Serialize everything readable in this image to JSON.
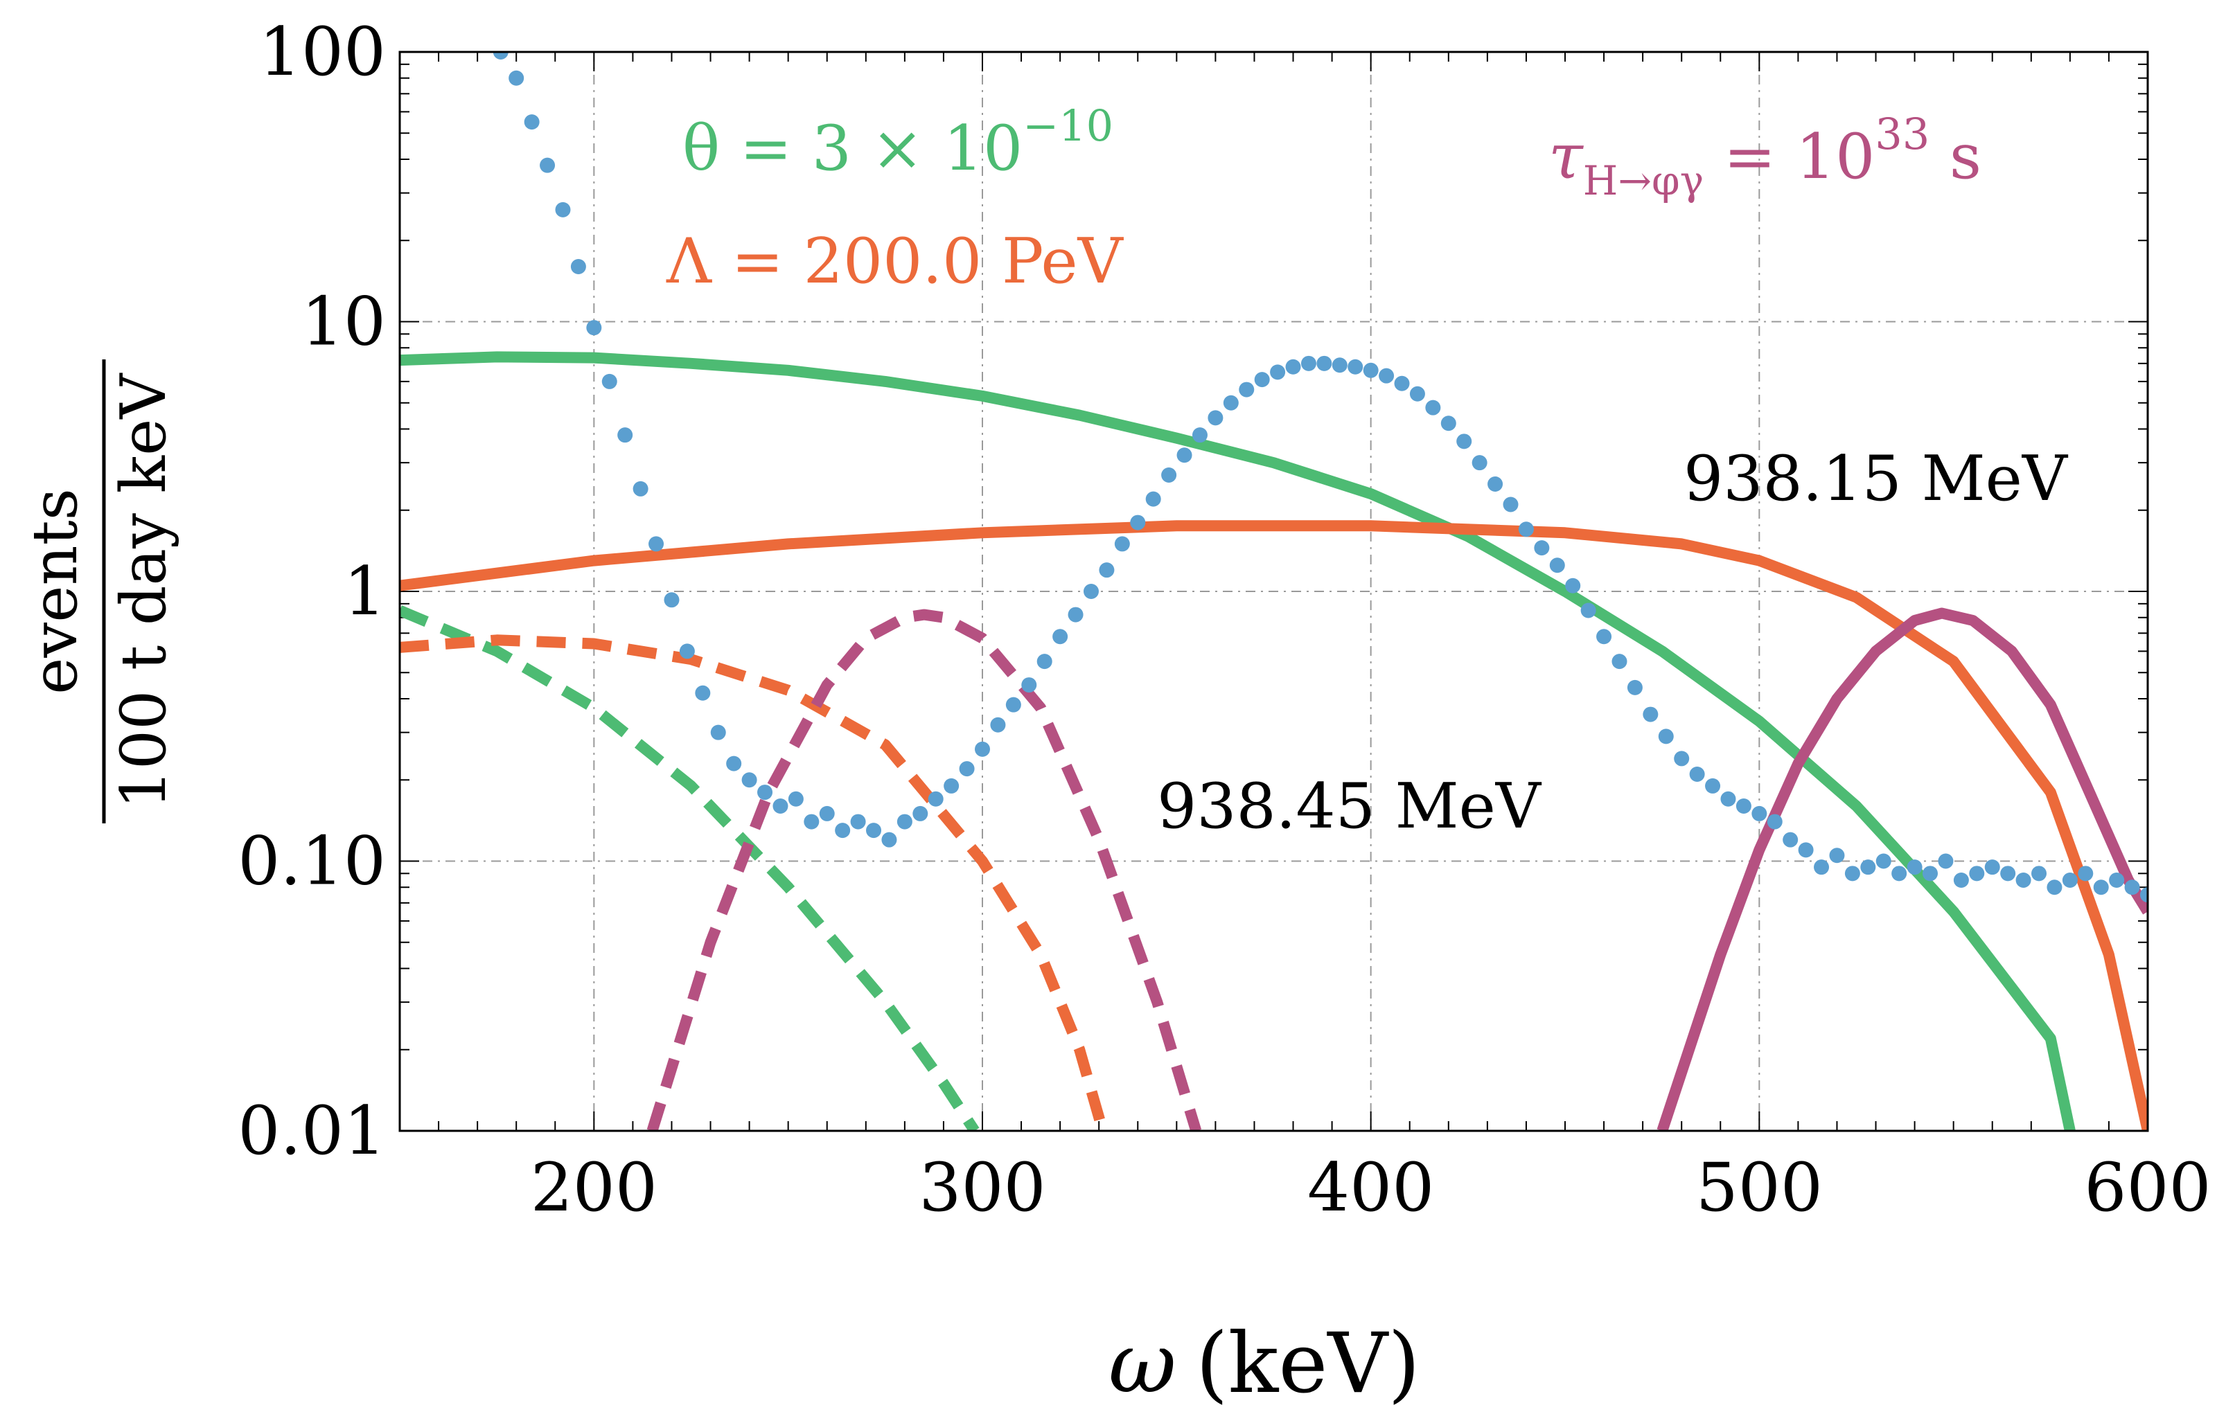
{
  "chart_data": {
    "type": "line",
    "xlabel_var": "ω",
    "xlabel_unit": "(keV)",
    "ylabel_num": "events",
    "ylabel_den": "100 t day keV",
    "xlim": [
      150,
      600
    ],
    "ylim": [
      0.01,
      100
    ],
    "yscale": "log",
    "grid": true,
    "x_ticks": [
      200,
      300,
      400,
      500,
      600
    ],
    "y_ticks": [
      {
        "value": 0.01,
        "label": "0.01"
      },
      {
        "value": 0.1,
        "label": "0.10"
      },
      {
        "value": 1,
        "label": "1"
      },
      {
        "value": 10,
        "label": "10"
      },
      {
        "value": 100,
        "label": "100"
      }
    ],
    "colors": {
      "green": "#4dbb73",
      "orange": "#ec6a3a",
      "magenta": "#b55181",
      "blue": "#5b9fd0"
    },
    "annotations": {
      "theta": {
        "lhs": "θ = 3 × 10",
        "exp": "−10"
      },
      "lambda": {
        "text": "Λ = 200.0 PeV"
      },
      "tau": {
        "sym": "τ",
        "sub": "H→φγ",
        "mid": " = 10",
        "exp": "33",
        "unit": " s"
      },
      "mass_high": "938.15 MeV",
      "mass_low": "938.45 MeV"
    },
    "series": [
      {
        "name": "green-solid",
        "color": "green",
        "style": "solid",
        "x": [
          150,
          175,
          200,
          225,
          250,
          275,
          300,
          325,
          350,
          375,
          400,
          425,
          450,
          475,
          500,
          525,
          550,
          575,
          580
        ],
        "y": [
          7.2,
          7.4,
          7.35,
          7.0,
          6.6,
          6.0,
          5.3,
          4.5,
          3.7,
          3.0,
          2.3,
          1.6,
          1.0,
          0.6,
          0.33,
          0.16,
          0.065,
          0.022,
          0.01
        ]
      },
      {
        "name": "orange-solid",
        "color": "orange",
        "style": "solid",
        "x": [
          150,
          200,
          250,
          300,
          350,
          400,
          450,
          480,
          500,
          525,
          550,
          575,
          590,
          600
        ],
        "y": [
          1.05,
          1.3,
          1.5,
          1.65,
          1.75,
          1.75,
          1.65,
          1.5,
          1.3,
          0.95,
          0.55,
          0.18,
          0.045,
          0.01
        ]
      },
      {
        "name": "magenta-solid",
        "color": "magenta",
        "style": "solid",
        "x": [
          475,
          490,
          500,
          510,
          520,
          530,
          540,
          547,
          555,
          565,
          575,
          585,
          595,
          600
        ],
        "y": [
          0.01,
          0.045,
          0.11,
          0.23,
          0.4,
          0.6,
          0.78,
          0.83,
          0.78,
          0.6,
          0.38,
          0.18,
          0.085,
          0.065
        ]
      },
      {
        "name": "green-dashed",
        "color": "green",
        "style": "dashed",
        "x": [
          150,
          175,
          200,
          225,
          250,
          275,
          290,
          298
        ],
        "y": [
          0.85,
          0.6,
          0.37,
          0.19,
          0.08,
          0.03,
          0.015,
          0.01
        ]
      },
      {
        "name": "orange-dashed",
        "color": "orange",
        "style": "dashed",
        "x": [
          150,
          175,
          200,
          225,
          250,
          275,
          300,
          315,
          325,
          331
        ],
        "y": [
          0.62,
          0.66,
          0.64,
          0.56,
          0.43,
          0.27,
          0.1,
          0.045,
          0.02,
          0.01
        ]
      },
      {
        "name": "magenta-dashed",
        "color": "magenta",
        "style": "dashed",
        "x": [
          215,
          230,
          245,
          260,
          270,
          280,
          285,
          290,
          300,
          315,
          330,
          345,
          355
        ],
        "y": [
          0.01,
          0.05,
          0.18,
          0.45,
          0.67,
          0.8,
          0.82,
          0.8,
          0.67,
          0.37,
          0.12,
          0.03,
          0.01
        ]
      },
      {
        "name": "background-dots",
        "color": "blue",
        "style": "dots",
        "x": [
          176,
          180,
          184,
          188,
          192,
          196,
          200,
          204,
          208,
          212,
          216,
          220,
          224,
          228,
          232,
          236,
          240,
          244,
          248,
          252,
          256,
          260,
          264,
          268,
          272,
          276,
          280,
          284,
          288,
          292,
          296,
          300,
          304,
          308,
          312,
          316,
          320,
          324,
          328,
          332,
          336,
          340,
          344,
          348,
          352,
          356,
          360,
          364,
          368,
          372,
          376,
          380,
          384,
          388,
          392,
          396,
          400,
          404,
          408,
          412,
          416,
          420,
          424,
          428,
          432,
          436,
          440,
          444,
          448,
          452,
          456,
          460,
          464,
          468,
          472,
          476,
          480,
          484,
          488,
          492,
          496,
          500,
          504,
          508,
          512,
          516,
          520,
          524,
          528,
          532,
          536,
          540,
          544,
          548,
          552,
          556,
          560,
          564,
          568,
          572,
          576,
          580,
          584,
          588,
          592,
          596,
          600
        ],
        "y": [
          100,
          80,
          55,
          38,
          26,
          16,
          9.5,
          6.0,
          3.8,
          2.4,
          1.5,
          0.93,
          0.6,
          0.42,
          0.3,
          0.23,
          0.2,
          0.18,
          0.16,
          0.17,
          0.14,
          0.15,
          0.13,
          0.14,
          0.13,
          0.12,
          0.14,
          0.15,
          0.17,
          0.19,
          0.22,
          0.26,
          0.32,
          0.38,
          0.45,
          0.55,
          0.68,
          0.82,
          1.0,
          1.2,
          1.5,
          1.8,
          2.2,
          2.7,
          3.2,
          3.8,
          4.4,
          5.0,
          5.6,
          6.1,
          6.5,
          6.8,
          7.0,
          7.0,
          6.9,
          6.8,
          6.6,
          6.3,
          5.9,
          5.4,
          4.8,
          4.2,
          3.6,
          3.0,
          2.5,
          2.1,
          1.7,
          1.45,
          1.25,
          1.05,
          0.85,
          0.68,
          0.55,
          0.44,
          0.35,
          0.29,
          0.24,
          0.21,
          0.19,
          0.17,
          0.16,
          0.15,
          0.14,
          0.12,
          0.11,
          0.095,
          0.105,
          0.09,
          0.095,
          0.1,
          0.09,
          0.095,
          0.09,
          0.1,
          0.085,
          0.09,
          0.095,
          0.09,
          0.085,
          0.09,
          0.08,
          0.085,
          0.09,
          0.08,
          0.085,
          0.08,
          0.075
        ]
      }
    ]
  }
}
